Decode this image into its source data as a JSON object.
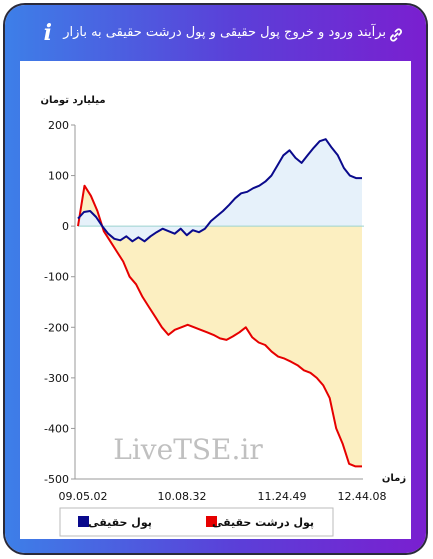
{
  "header": {
    "title": "برآیند ورود و خروج پول حقیقی و پول درشت حقیقی به بازار",
    "info_icon": "i"
  },
  "watermark": "LiveTSE.ir",
  "chart_data": {
    "type": "line",
    "ylabel": "میلیارد تومان",
    "xlabel": "زمان",
    "ylim": [
      -500,
      200
    ],
    "yticks": [
      200,
      100,
      0,
      -100,
      -200,
      -300,
      -400,
      -500
    ],
    "x_ticks": [
      "09.05.02",
      "10.08.32",
      "11.24.49",
      "12.44.08"
    ],
    "grid": false,
    "legend_position": "bottom",
    "series": [
      {
        "name": "پول حقیقی",
        "color": "#0a0a8c",
        "fill": "#e6f1fa",
        "values": [
          15,
          28,
          30,
          18,
          0,
          -15,
          -25,
          -28,
          -20,
          -30,
          -22,
          -30,
          -20,
          -12,
          -5,
          -10,
          -15,
          -5,
          -18,
          -8,
          -12,
          -5,
          10,
          20,
          30,
          42,
          55,
          65,
          68,
          75,
          80,
          88,
          100,
          120,
          140,
          150,
          135,
          125,
          140,
          155,
          168,
          172,
          155,
          140,
          115,
          100,
          95,
          95
        ]
      },
      {
        "name": "پول درشت حقیقی",
        "color": "#e60000",
        "fill": "#fcefc1",
        "values": [
          0,
          80,
          60,
          30,
          -10,
          -30,
          -50,
          -70,
          -100,
          -115,
          -140,
          -160,
          -180,
          -200,
          -215,
          -205,
          -200,
          -195,
          -200,
          -205,
          -210,
          -215,
          -222,
          -225,
          -218,
          -210,
          -200,
          -220,
          -230,
          -235,
          -248,
          -258,
          -262,
          -268,
          -275,
          -285,
          -290,
          -300,
          -315,
          -340,
          -400,
          -430,
          -470,
          -475,
          -475
        ]
      }
    ]
  }
}
